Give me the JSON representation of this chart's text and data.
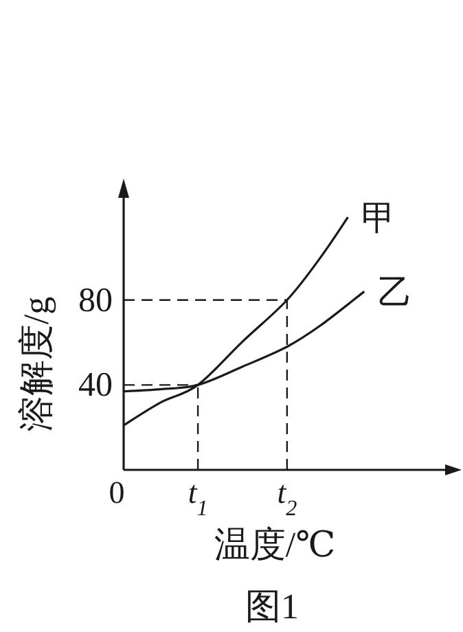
{
  "chart_data": {
    "type": "line",
    "xlabel": "温度/℃",
    "ylabel": "溶解度/g",
    "annotations": [
      "图1"
    ],
    "x": [
      0,
      0.49,
      1.0,
      1.6,
      2.2,
      2.65,
      3.02
    ],
    "xlim": [
      0,
      4.44
    ],
    "ylim": [
      0,
      132
    ],
    "xticks": [
      {
        "value": 0,
        "label": "0"
      },
      {
        "value": 1.0,
        "label": "t$_{1}$"
      },
      {
        "value": 2.2,
        "label": "t$_{2}$"
      }
    ],
    "yticks": [
      40,
      80
    ],
    "series": [
      {
        "name": "甲",
        "color": "#1a1a1a",
        "values": [
          21,
          31.6,
          40,
          60.4,
          80,
          100,
          119
        ]
      },
      {
        "name": "乙",
        "color": "#1a1a1a",
        "x": [
          0,
          0.49,
          1.0,
          1.6,
          2.2,
          2.65,
          3.24
        ],
        "values": [
          37,
          38,
          40,
          48.6,
          58,
          68,
          84
        ]
      }
    ],
    "ref_lines": [
      {
        "axis": "x",
        "value": 1.0,
        "line_style": "dashed"
      },
      {
        "axis": "x",
        "value": 2.2,
        "line_style": "dashed"
      },
      {
        "axis": "y",
        "value": 40,
        "line_style": "dashed"
      },
      {
        "axis": "y",
        "value": 80,
        "line_style": "dashed"
      }
    ],
    "grid": false,
    "marker": "none",
    "line_style": "solid"
  }
}
